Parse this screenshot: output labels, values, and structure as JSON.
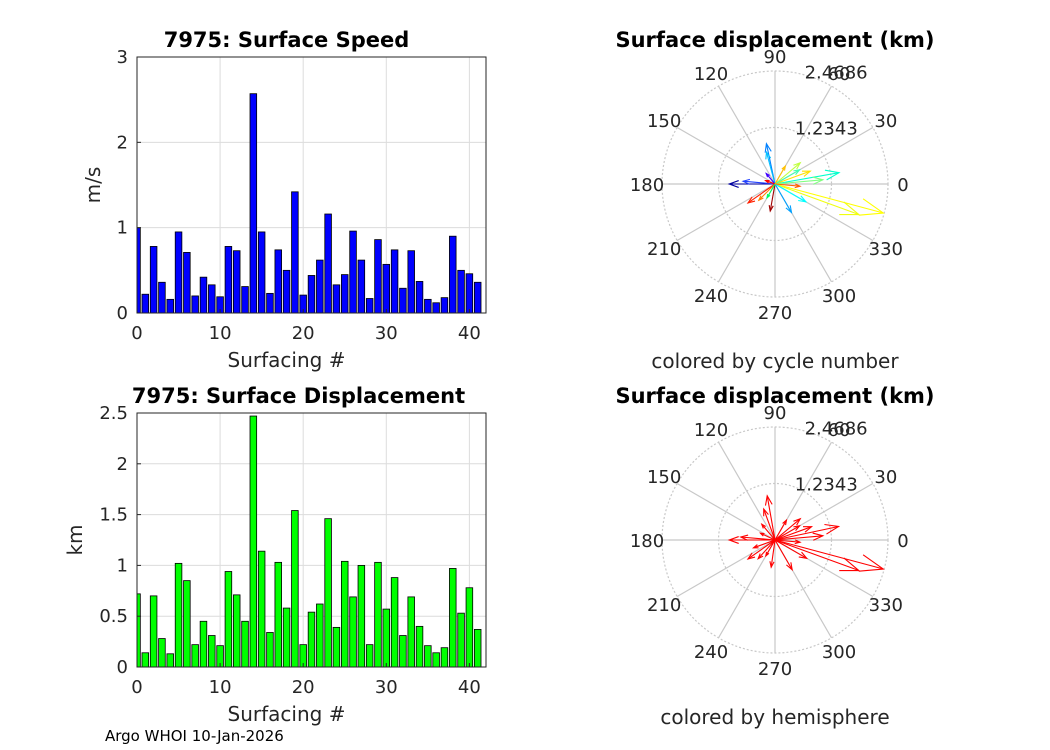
{
  "footer": "Argo WHOI 10-Jan-2026",
  "chart_data": [
    {
      "type": "bar",
      "title": "7975: Surface Speed",
      "xlabel": "Surfacing #",
      "ylabel": "m/s",
      "xlim": [
        0,
        42
      ],
      "ylim": [
        0,
        3
      ],
      "xticks": [
        "0",
        "10",
        "20",
        "30",
        "40"
      ],
      "yticks": [
        "0",
        "1",
        "2",
        "3"
      ],
      "bar_color": "#0000ff",
      "x": [
        0,
        1,
        2,
        3,
        4,
        5,
        6,
        7,
        8,
        9,
        10,
        11,
        12,
        13,
        14,
        15,
        16,
        17,
        18,
        19,
        20,
        21,
        22,
        23,
        24,
        25,
        26,
        27,
        28,
        29,
        30,
        31,
        32,
        33,
        34,
        35,
        36,
        37,
        38,
        39,
        40,
        41
      ],
      "values": [
        1.0,
        0.22,
        0.78,
        0.36,
        0.16,
        0.95,
        0.71,
        0.2,
        0.42,
        0.33,
        0.19,
        0.78,
        0.73,
        0.31,
        2.57,
        0.95,
        0.23,
        0.74,
        0.5,
        1.42,
        0.21,
        0.44,
        0.62,
        1.16,
        0.33,
        0.45,
        0.96,
        0.62,
        0.17,
        0.86,
        0.57,
        0.74,
        0.29,
        0.73,
        0.37,
        0.16,
        0.12,
        0.18,
        0.9,
        0.5,
        0.46,
        0.36
      ]
    },
    {
      "type": "bar",
      "title": "7975: Surface Displacement",
      "xlabel": "Surfacing #",
      "ylabel": "km",
      "xlim": [
        0,
        42
      ],
      "ylim": [
        0,
        2.5
      ],
      "xticks": [
        "0",
        "10",
        "20",
        "30",
        "40"
      ],
      "yticks": [
        "0",
        "0.5",
        "1",
        "1.5",
        "2",
        "2.5"
      ],
      "bar_color": "#00ff00",
      "x": [
        0,
        1,
        2,
        3,
        4,
        5,
        6,
        7,
        8,
        9,
        10,
        11,
        12,
        13,
        14,
        15,
        16,
        17,
        18,
        19,
        20,
        21,
        22,
        23,
        24,
        25,
        26,
        27,
        28,
        29,
        30,
        31,
        32,
        33,
        34,
        35,
        36,
        37,
        38,
        39,
        40,
        41
      ],
      "values": [
        0.72,
        0.14,
        0.7,
        0.28,
        0.13,
        1.02,
        0.85,
        0.22,
        0.45,
        0.31,
        0.21,
        0.94,
        0.71,
        0.45,
        2.47,
        1.14,
        0.34,
        1.03,
        0.58,
        1.54,
        0.22,
        0.54,
        0.62,
        1.46,
        0.39,
        1.04,
        0.69,
        1.0,
        0.22,
        1.03,
        0.57,
        0.88,
        0.31,
        0.69,
        0.4,
        0.21,
        0.14,
        0.19,
        0.97,
        0.53,
        0.78,
        0.37
      ]
    },
    {
      "type": "compass",
      "title": "Surface displacement (km)",
      "caption": "colored by cycle number",
      "rmax": 2.4686,
      "ring_labels": [
        "1.2343",
        "2.4686"
      ],
      "angle_labels": [
        "0",
        "30",
        "60",
        "90",
        "120",
        "150",
        "180",
        "210",
        "240",
        "270",
        "300",
        "330"
      ],
      "arrows": [
        {
          "angle": 345,
          "r": 2.45,
          "color": "#ffff00"
        },
        {
          "angle": 340,
          "r": 1.95,
          "color": "#f0ff10"
        },
        {
          "angle": 10,
          "r": 1.42,
          "color": "#00ffcc"
        },
        {
          "angle": 5,
          "r": 1.05,
          "color": "#80ff80"
        },
        {
          "angle": 20,
          "r": 0.82,
          "color": "#ffe000"
        },
        {
          "angle": 40,
          "r": 0.72,
          "color": "#c0ff40"
        },
        {
          "angle": 30,
          "r": 0.62,
          "color": "#40ffb0"
        },
        {
          "angle": 102,
          "r": 0.9,
          "color": "#0080ff"
        },
        {
          "angle": 105,
          "r": 0.72,
          "color": "#00c0ff"
        },
        {
          "angle": 180,
          "r": 1.0,
          "color": "#0000a0"
        },
        {
          "angle": 175,
          "r": 0.7,
          "color": "#2040ff"
        },
        {
          "angle": 215,
          "r": 0.72,
          "color": "#ff2000"
        },
        {
          "angle": 225,
          "r": 0.5,
          "color": "#ff8000"
        },
        {
          "angle": 260,
          "r": 0.6,
          "color": "#a00000"
        },
        {
          "angle": 300,
          "r": 0.72,
          "color": "#00a0ff"
        },
        {
          "angle": 330,
          "r": 0.78,
          "color": "#00ffff"
        },
        {
          "angle": 355,
          "r": 0.55,
          "color": "#ff6000"
        },
        {
          "angle": 130,
          "r": 0.3,
          "color": "#4000ff"
        },
        {
          "angle": 160,
          "r": 0.22,
          "color": "#ff0000"
        },
        {
          "angle": 60,
          "r": 0.45,
          "color": "#ffc000"
        },
        {
          "angle": 240,
          "r": 0.35,
          "color": "#00ff60"
        }
      ]
    },
    {
      "type": "compass",
      "title": "Surface displacement (km)",
      "caption": "colored by hemisphere",
      "rmax": 2.4686,
      "ring_labels": [
        "1.2343",
        "2.4686"
      ],
      "angle_labels": [
        "0",
        "30",
        "60",
        "90",
        "120",
        "150",
        "180",
        "210",
        "240",
        "270",
        "300",
        "330"
      ],
      "arrows": [
        {
          "angle": 345,
          "r": 2.45,
          "color": "#ff0000"
        },
        {
          "angle": 340,
          "r": 1.95,
          "color": "#ff0000"
        },
        {
          "angle": 12,
          "r": 1.42,
          "color": "#ff0000"
        },
        {
          "angle": 5,
          "r": 1.05,
          "color": "#ff0000"
        },
        {
          "angle": 20,
          "r": 0.85,
          "color": "#ff0000"
        },
        {
          "angle": 40,
          "r": 0.72,
          "color": "#ff0000"
        },
        {
          "angle": 30,
          "r": 0.62,
          "color": "#ff0000"
        },
        {
          "angle": 100,
          "r": 0.98,
          "color": "#ff0000"
        },
        {
          "angle": 110,
          "r": 0.72,
          "color": "#ff0000"
        },
        {
          "angle": 180,
          "r": 1.0,
          "color": "#ff0000"
        },
        {
          "angle": 175,
          "r": 0.75,
          "color": "#ff0000"
        },
        {
          "angle": 215,
          "r": 0.72,
          "color": "#ff0000"
        },
        {
          "angle": 228,
          "r": 0.55,
          "color": "#ff0000"
        },
        {
          "angle": 262,
          "r": 0.6,
          "color": "#ff0000"
        },
        {
          "angle": 300,
          "r": 0.75,
          "color": "#ff0000"
        },
        {
          "angle": 330,
          "r": 0.8,
          "color": "#ff0000"
        },
        {
          "angle": 355,
          "r": 0.55,
          "color": "#ff0000"
        },
        {
          "angle": 130,
          "r": 0.45,
          "color": "#ff0000"
        },
        {
          "angle": 155,
          "r": 0.35,
          "color": "#ff0000"
        },
        {
          "angle": 60,
          "r": 0.5,
          "color": "#ff0000"
        },
        {
          "angle": 240,
          "r": 0.4,
          "color": "#ff0000"
        },
        {
          "angle": 200,
          "r": 0.5,
          "color": "#ff0000"
        }
      ]
    }
  ]
}
